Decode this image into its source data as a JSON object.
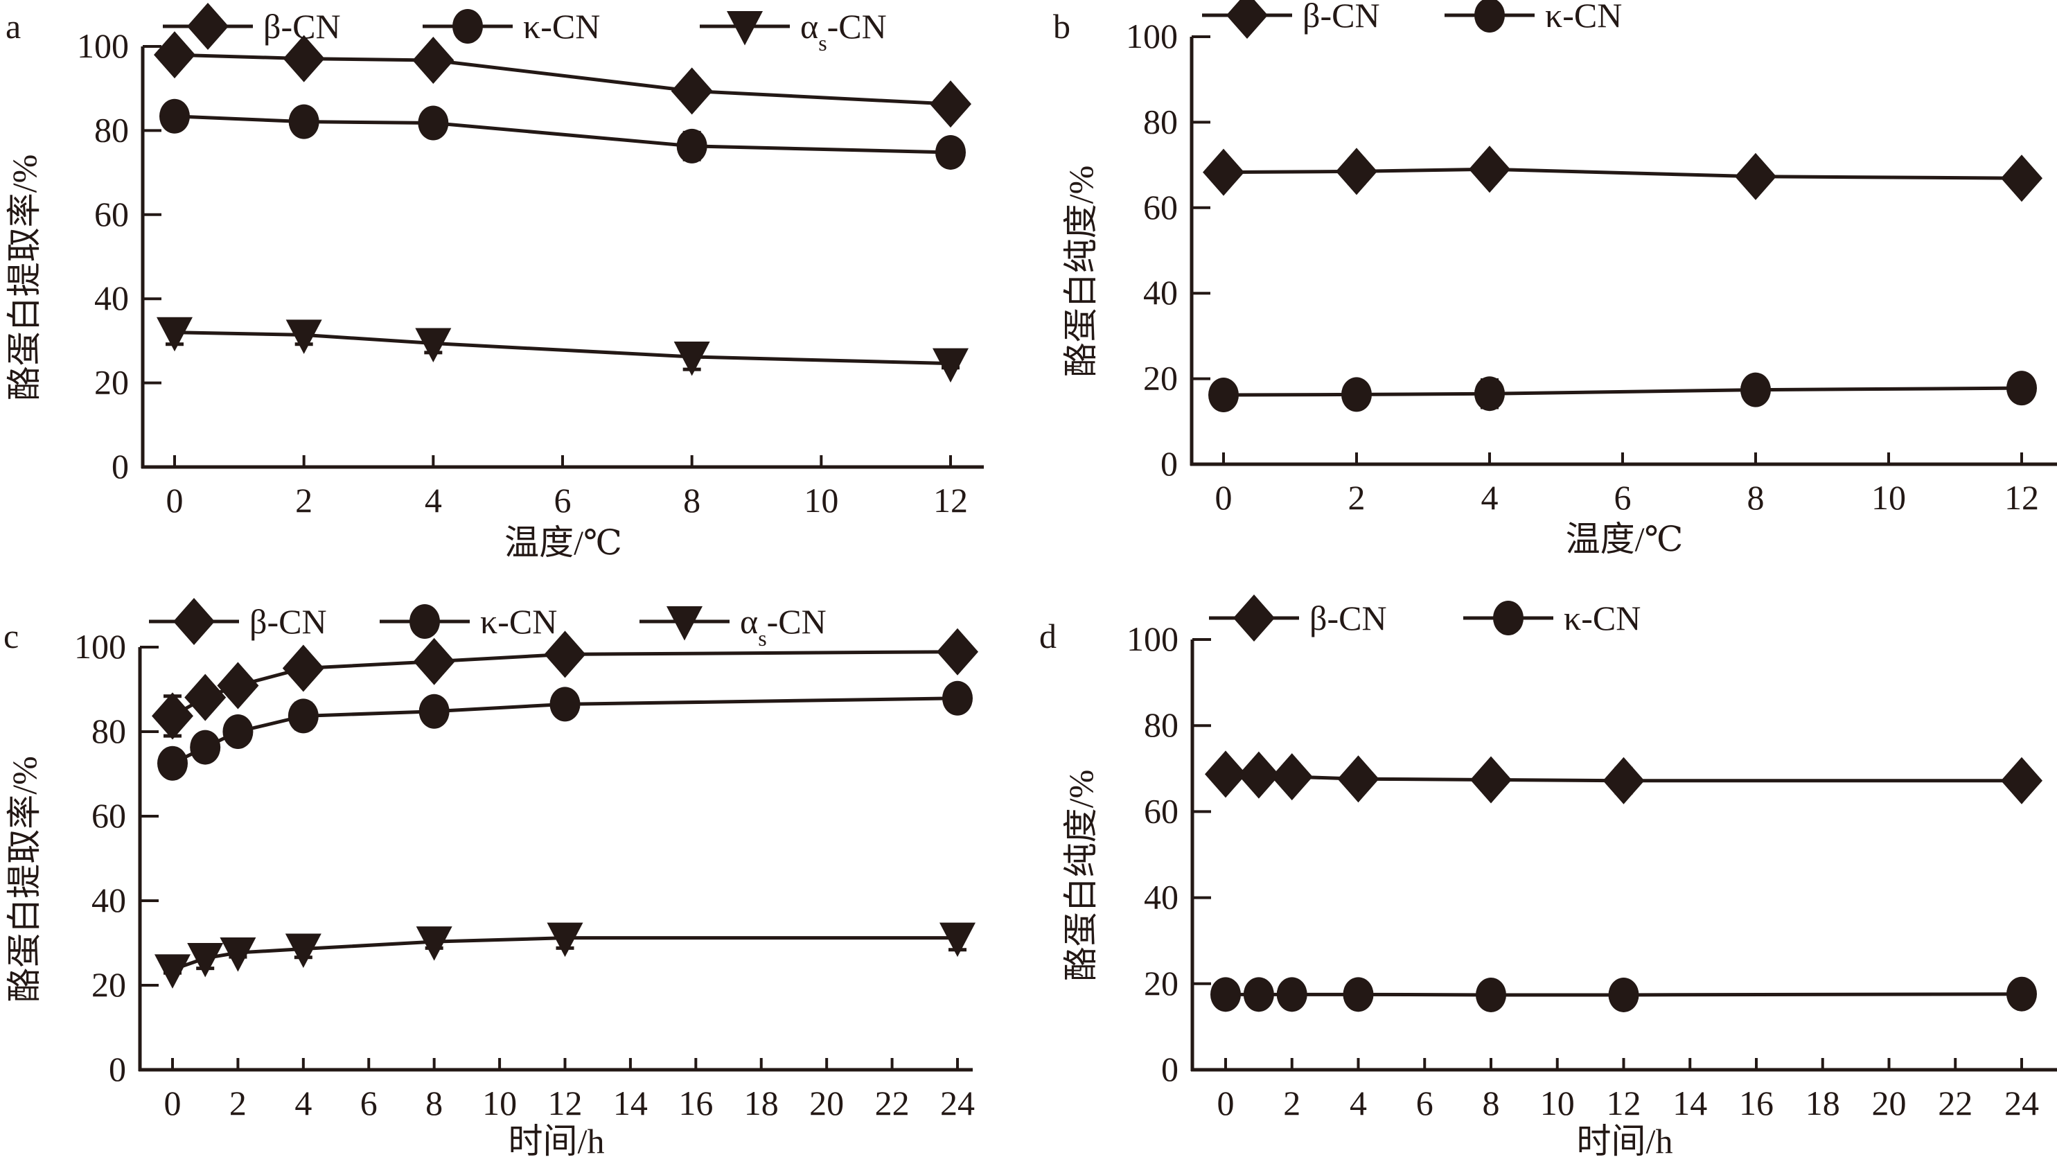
{
  "colors": {
    "ink": "#231815",
    "background": "#ffffff"
  },
  "chart_data": [
    {
      "id": "a",
      "type": "line",
      "panel_label": "a",
      "xlabel": "温度/℃",
      "ylabel": "酪蛋白提取率/%",
      "xlim": [
        0,
        12
      ],
      "ylim": [
        0,
        100
      ],
      "xticks": [
        0,
        2,
        4,
        6,
        8,
        10,
        12
      ],
      "yticks": [
        0,
        20,
        40,
        60,
        80,
        100
      ],
      "grid": false,
      "legend_position": "top",
      "x": [
        0,
        2,
        4,
        8,
        12
      ],
      "series": [
        {
          "name": "β-CN",
          "label_main": "β-CN",
          "label_sub": "",
          "label_tail": "",
          "marker": "diamond",
          "values": [
            98.0,
            97.1,
            96.7,
            89.4,
            86.3
          ],
          "errors": [
            1.5,
            2.0,
            1.8,
            2.8,
            2.3
          ]
        },
        {
          "name": "κ-CN",
          "label_main": "κ-CN",
          "label_sub": "",
          "label_tail": "",
          "marker": "circle",
          "values": [
            83.4,
            82.1,
            81.8,
            76.3,
            74.8
          ],
          "errors": [
            1.0,
            2.2,
            1.4,
            3.2,
            2.6
          ]
        },
        {
          "name": "αs-CN",
          "label_main": "α",
          "label_sub": "s",
          "label_tail": "-CN",
          "marker": "triangle-down",
          "values": [
            32.0,
            31.4,
            29.4,
            26.2,
            24.6
          ],
          "errors": [
            2.8,
            2.2,
            2.2,
            3.0,
            1.0
          ]
        }
      ]
    },
    {
      "id": "b",
      "type": "line",
      "panel_label": "b",
      "xlabel": "温度/℃",
      "ylabel": "酪蛋白纯度/%",
      "xlim": [
        0,
        12
      ],
      "ylim": [
        0,
        100
      ],
      "xticks": [
        0,
        2,
        4,
        6,
        8,
        10,
        12
      ],
      "yticks": [
        0,
        20,
        40,
        60,
        80,
        100
      ],
      "grid": false,
      "legend_position": "top",
      "x": [
        0,
        2,
        4,
        8,
        12
      ],
      "series": [
        {
          "name": "β-CN",
          "label_main": "β-CN",
          "label_sub": "",
          "label_tail": "",
          "marker": "diamond",
          "values": [
            68.3,
            68.5,
            69.0,
            67.3,
            66.9
          ],
          "errors": [
            1.0,
            2.8,
            2.6,
            2.6,
            2.2
          ]
        },
        {
          "name": "κ-CN",
          "label_main": "κ-CN",
          "label_sub": "",
          "label_tail": "",
          "marker": "circle",
          "values": [
            16.2,
            16.3,
            16.5,
            17.4,
            17.8
          ],
          "errors": [
            1.5,
            1.7,
            3.2,
            1.7,
            2.6
          ]
        }
      ]
    },
    {
      "id": "c",
      "type": "line",
      "panel_label": "c",
      "xlabel": "时间/h",
      "ylabel": "酪蛋白提取率/%",
      "xlim": [
        0,
        24
      ],
      "ylim": [
        0,
        100
      ],
      "xticks": [
        0,
        2,
        4,
        6,
        8,
        10,
        12,
        14,
        16,
        18,
        20,
        22,
        24
      ],
      "yticks": [
        0,
        20,
        40,
        60,
        80,
        100
      ],
      "grid": false,
      "legend_position": "top",
      "x": [
        0,
        1,
        2,
        4,
        8,
        12,
        24
      ],
      "series": [
        {
          "name": "β-CN",
          "label_main": "β-CN",
          "label_sub": "",
          "label_tail": "",
          "marker": "diamond",
          "values": [
            83.7,
            88.1,
            90.9,
            95.0,
            96.6,
            98.3,
            98.9
          ],
          "errors": [
            4.7,
            1.5,
            2.5,
            2.5,
            1.0,
            2.4,
            0.8
          ]
        },
        {
          "name": "κ-CN",
          "label_main": "κ-CN",
          "label_sub": "",
          "label_tail": "",
          "marker": "circle",
          "values": [
            72.5,
            76.3,
            80.0,
            83.7,
            84.8,
            86.5,
            87.9
          ],
          "errors": [
            1.5,
            2.8,
            2.5,
            3.0,
            1.0,
            1.0,
            1.0
          ]
        },
        {
          "name": "αs-CN",
          "label_main": "α",
          "label_sub": "s",
          "label_tail": "-CN",
          "marker": "triangle-down",
          "values": [
            23.7,
            26.4,
            27.7,
            28.6,
            30.3,
            31.2,
            31.2
          ],
          "errors": [
            0.8,
            2.4,
            1.0,
            2.0,
            1.5,
            2.4,
            2.8
          ]
        }
      ]
    },
    {
      "id": "d",
      "type": "line",
      "panel_label": "d",
      "xlabel": "时间/h",
      "ylabel": "酪蛋白纯度/%",
      "xlim": [
        0,
        24
      ],
      "ylim": [
        0,
        100
      ],
      "xticks": [
        0,
        2,
        4,
        6,
        8,
        10,
        12,
        14,
        16,
        18,
        20,
        22,
        24
      ],
      "yticks": [
        0,
        20,
        40,
        60,
        80,
        100
      ],
      "grid": false,
      "legend_position": "top",
      "x": [
        0,
        1,
        2,
        4,
        8,
        12,
        24
      ],
      "series": [
        {
          "name": "β-CN",
          "label_main": "β-CN",
          "label_sub": "",
          "label_tail": "",
          "marker": "diamond",
          "values": [
            68.7,
            68.5,
            68.1,
            67.6,
            67.4,
            67.2,
            67.2
          ],
          "errors": [
            0.8,
            2.0,
            2.0,
            2.4,
            2.2,
            2.8,
            0.8
          ]
        },
        {
          "name": "κ-CN",
          "label_main": "κ-CN",
          "label_sub": "",
          "label_tail": "",
          "marker": "circle",
          "values": [
            17.5,
            17.5,
            17.5,
            17.5,
            17.4,
            17.4,
            17.6
          ],
          "errors": [
            1.0,
            1.8,
            2.6,
            1.8,
            1.6,
            2.4,
            2.0
          ]
        }
      ]
    }
  ]
}
